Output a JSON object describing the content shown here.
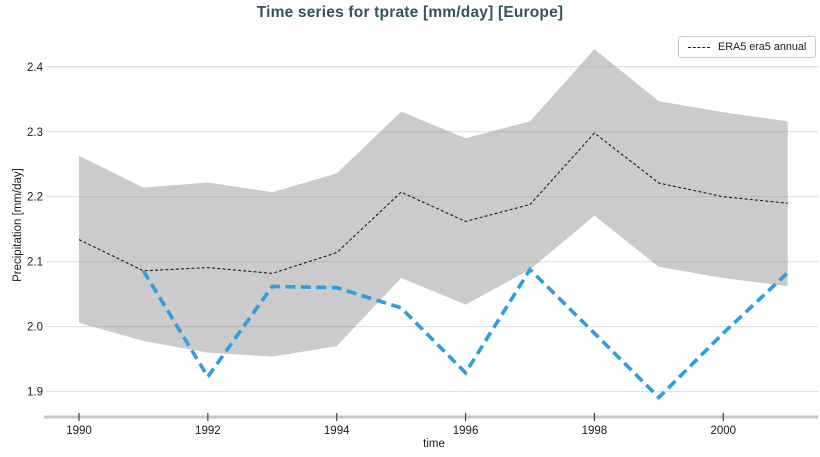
{
  "chart_data": {
    "type": "line",
    "title": "Time series for tprate [mm/day] [Europe]",
    "xlabel": "time",
    "ylabel": "Precipitation [mm/day]",
    "xlim": [
      1989.55,
      2001.47
    ],
    "ylim": [
      1.861,
      2.452
    ],
    "xticks": [
      1990,
      1992,
      1994,
      1996,
      1998,
      2000
    ],
    "yticks": [
      1.9,
      2.0,
      2.1,
      2.2,
      2.3,
      2.4
    ],
    "grid": "horizontal",
    "colors": {
      "title": "#31545e",
      "era5_line": "#1a1a1a",
      "blue_line": "#2d9fdc",
      "band": "#c9c9c9",
      "gridline": "#dcdcdc",
      "axis_line": "#c5c5c5",
      "tick_text": "#1a1a1a"
    },
    "legend": {
      "position": "top-right",
      "entries": [
        {
          "label": "ERA5 era5 annual",
          "style": "dashed",
          "color": "#1a1a1a"
        }
      ]
    },
    "band": {
      "name": "uncertainty-band",
      "color": "#c9c9c9",
      "x": [
        1990,
        1991,
        1992,
        1993,
        1994,
        1995,
        1996,
        1997,
        1998,
        1999,
        2000,
        2001
      ],
      "upper": [
        2.263,
        2.214,
        2.222,
        2.207,
        2.236,
        2.331,
        2.29,
        2.316,
        2.427,
        2.347,
        2.33,
        2.316
      ],
      "lower": [
        2.006,
        1.978,
        1.96,
        1.954,
        1.97,
        2.075,
        2.034,
        2.088,
        2.171,
        2.092,
        2.075,
        2.062
      ]
    },
    "series": [
      {
        "name": "ERA5 era5 annual",
        "legend_shown": true,
        "color": "#1a1a1a",
        "line_style": "dashed-thin",
        "x": [
          1990,
          1991,
          1992,
          1993,
          1994,
          1995,
          1996,
          1997,
          1998,
          1999,
          2000,
          2001
        ],
        "values": [
          2.134,
          2.086,
          2.091,
          2.082,
          2.114,
          2.207,
          2.162,
          2.188,
          2.298,
          2.221,
          2.2,
          2.19
        ]
      },
      {
        "name": "",
        "legend_shown": false,
        "color": "#2d9fdc",
        "line_style": "dashed-thick",
        "x": [
          1991,
          1992,
          1993,
          1994,
          1995,
          1996,
          1997,
          1998,
          1999,
          2000,
          2001
        ],
        "values": [
          2.086,
          1.923,
          2.062,
          2.06,
          2.029,
          1.929,
          2.088,
          1.99,
          1.891,
          1.99,
          2.083
        ]
      }
    ]
  }
}
